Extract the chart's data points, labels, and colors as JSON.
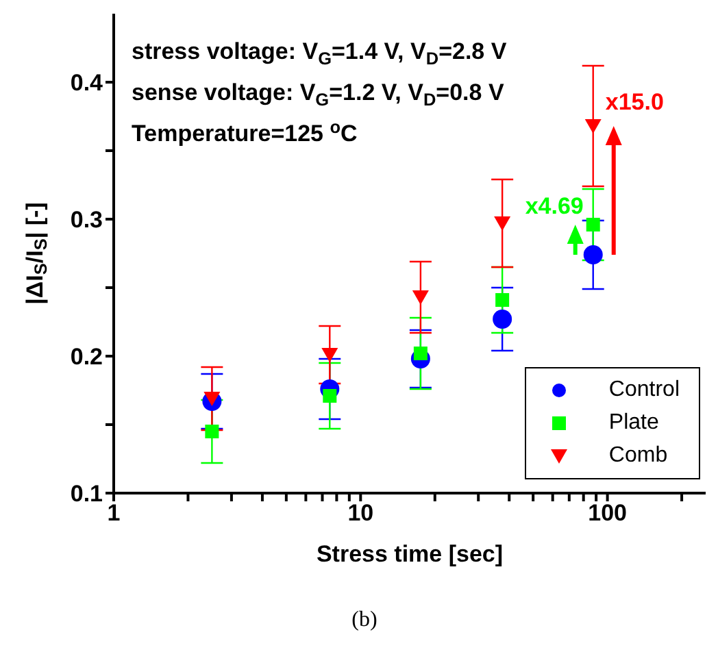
{
  "chart_data": {
    "type": "scatter",
    "xlabel": "Stress time [sec]",
    "ylabel": "|ΔI$_{S}$/I$_{S}$| [-]",
    "x": [
      2.5,
      7.5,
      17.5,
      37.5,
      87.5
    ],
    "series": [
      {
        "name": "Control",
        "color": "#0000ff",
        "marker": "circle",
        "values": [
          0.167,
          0.176,
          0.198,
          0.227,
          0.274
        ],
        "errors": [
          0.02,
          0.022,
          0.021,
          0.023,
          0.025
        ]
      },
      {
        "name": "Plate",
        "color": "#00ff00",
        "marker": "square",
        "values": [
          0.145,
          0.171,
          0.202,
          0.241,
          0.296
        ],
        "errors": [
          0.023,
          0.024,
          0.026,
          0.024,
          0.026
        ]
      },
      {
        "name": "Comb",
        "color": "#ff0000",
        "marker": "triangle",
        "values": [
          0.169,
          0.201,
          0.243,
          0.297,
          0.368
        ],
        "errors": [
          0.023,
          0.021,
          0.026,
          0.032,
          0.044
        ]
      }
    ],
    "log": "x",
    "xlim": [
      1,
      250
    ],
    "xticks": [
      1,
      {
        "value": 2,
        "label": null
      },
      {
        "value": 3,
        "label": null
      },
      {
        "value": 4,
        "label": null
      },
      {
        "value": 5,
        "label": null
      },
      {
        "value": 6,
        "label": null
      },
      {
        "value": 7,
        "label": null
      },
      {
        "value": 8,
        "label": null
      },
      {
        "value": 9,
        "label": null
      },
      10,
      {
        "value": 20,
        "label": null
      },
      {
        "value": 30,
        "label": null
      },
      {
        "value": 40,
        "label": null
      },
      {
        "value": 50,
        "label": null
      },
      {
        "value": 60,
        "label": null
      },
      {
        "value": 70,
        "label": null
      },
      {
        "value": 80,
        "label": null
      },
      {
        "value": 90,
        "label": null
      },
      100,
      {
        "value": 200,
        "label": null
      }
    ],
    "ylim": [
      0.1,
      0.45
    ],
    "yticks": [
      0.1,
      {
        "value": 0.15,
        "label": null
      },
      0.2,
      {
        "value": 0.25,
        "label": null
      },
      0.3,
      {
        "value": 0.35,
        "label": null
      },
      0.4
    ],
    "grid": false,
    "legend": "bottom right",
    "annotations": [
      "stress voltage: V$_{G}$=1.4 V, V$_{D}$=2.8 V",
      "sense voltage: V$_{G}$=1.2 V, V$_{D}$=0.8 V",
      "Temperature=125 $^{o}$C",
      "x4.69",
      "x15.0",
      "(b)"
    ]
  }
}
